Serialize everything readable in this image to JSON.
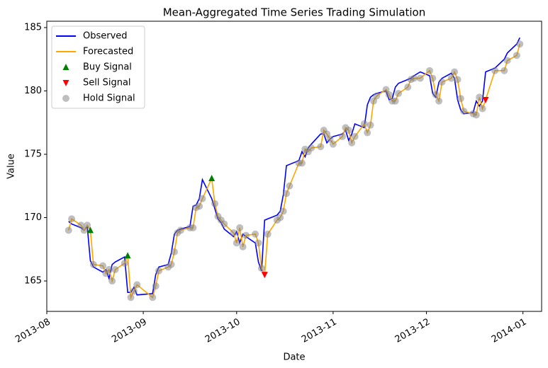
{
  "chart_data": {
    "type": "line",
    "title": "Mean-Aggregated Time Series Trading Simulation",
    "x_label": "Date",
    "y_label": "Value",
    "x": [
      "2013-08-08",
      "2013-08-09",
      "2013-08-12",
      "2013-08-13",
      "2013-08-14",
      "2013-08-15",
      "2013-08-16",
      "2013-08-19",
      "2013-08-20",
      "2013-08-21",
      "2013-08-22",
      "2013-08-23",
      "2013-08-26",
      "2013-08-27",
      "2013-08-28",
      "2013-08-29",
      "2013-08-30",
      "2013-09-04",
      "2013-09-05",
      "2013-09-06",
      "2013-09-09",
      "2013-09-10",
      "2013-09-11",
      "2013-09-12",
      "2013-09-13",
      "2013-09-16",
      "2013-09-17",
      "2013-09-18",
      "2013-09-19",
      "2013-09-20",
      "2013-09-23",
      "2013-09-24",
      "2013-09-25",
      "2013-09-26",
      "2013-09-27",
      "2013-09-30",
      "2013-10-01",
      "2013-10-02",
      "2013-10-03",
      "2013-10-04",
      "2013-10-07",
      "2013-10-08",
      "2013-10-09",
      "2013-10-10",
      "2013-10-11",
      "2013-10-14",
      "2013-10-15",
      "2013-10-16",
      "2013-10-17",
      "2013-10-18",
      "2013-10-21",
      "2013-10-22",
      "2013-10-23",
      "2013-10-24",
      "2013-10-25",
      "2013-10-28",
      "2013-10-29",
      "2013-10-30",
      "2013-10-31",
      "2013-11-01",
      "2013-11-04",
      "2013-11-05",
      "2013-11-06",
      "2013-11-07",
      "2013-11-08",
      "2013-11-11",
      "2013-11-12",
      "2013-11-13",
      "2013-11-14",
      "2013-11-15",
      "2013-11-18",
      "2013-11-19",
      "2013-11-20",
      "2013-11-21",
      "2013-11-22",
      "2013-11-25",
      "2013-11-26",
      "2013-11-27",
      "2013-11-29",
      "2013-12-02",
      "2013-12-03",
      "2013-12-04",
      "2013-12-05",
      "2013-12-06",
      "2013-12-09",
      "2013-12-10",
      "2013-12-11",
      "2013-12-12",
      "2013-12-13",
      "2013-12-16",
      "2013-12-17",
      "2013-12-18",
      "2013-12-19",
      "2013-12-20",
      "2013-12-23",
      "2013-12-26",
      "2013-12-27",
      "2013-12-30",
      "2013-12-31"
    ],
    "series": [
      {
        "name": "Observed",
        "color": "#0000ff",
        "values": [
          169.7,
          169.5,
          169.2,
          169.0,
          169.3,
          166.6,
          166.1,
          165.7,
          165.9,
          165.2,
          166.3,
          166.5,
          166.9,
          164.1,
          164.1,
          164.5,
          163.9,
          164.0,
          165.5,
          166.1,
          166.3,
          167.2,
          168.7,
          169.0,
          169.1,
          169.3,
          170.9,
          171.0,
          171.5,
          173.0,
          171.5,
          170.7,
          169.9,
          169.6,
          169.1,
          168.5,
          168.9,
          168.0,
          168.7,
          168.5,
          168.0,
          166.5,
          165.8,
          169.8,
          169.9,
          170.2,
          170.5,
          171.8,
          174.1,
          174.2,
          174.5,
          175.2,
          174.8,
          175.5,
          175.8,
          176.6,
          176.6,
          175.9,
          176.2,
          176.4,
          176.6,
          176.9,
          176.1,
          176.6,
          177.4,
          177.1,
          178.9,
          179.5,
          179.7,
          179.8,
          180.0,
          179.3,
          179.4,
          180.3,
          180.6,
          180.9,
          181.0,
          181.2,
          181.5,
          181.2,
          179.8,
          179.5,
          180.7,
          181.0,
          181.4,
          181.0,
          179.3,
          178.5,
          178.2,
          178.3,
          179.2,
          178.8,
          179.2,
          181.5,
          181.8,
          182.5,
          183.0,
          183.7,
          184.2
        ]
      },
      {
        "name": "Forecasted",
        "color": "#ffa500",
        "values": [
          169.0,
          169.9,
          169.4,
          169.0,
          169.4,
          169.0,
          166.3,
          166.2,
          165.6,
          165.9,
          165.0,
          165.9,
          166.4,
          167.0,
          163.7,
          164.2,
          164.7,
          163.7,
          164.6,
          165.8,
          166.1,
          166.3,
          167.3,
          168.8,
          169.0,
          169.2,
          169.2,
          170.8,
          170.9,
          171.5,
          173.1,
          171.1,
          170.1,
          169.8,
          169.5,
          168.8,
          168.0,
          169.2,
          167.7,
          168.6,
          168.7,
          168.0,
          166.0,
          165.5,
          168.7,
          169.8,
          170.0,
          170.5,
          171.9,
          172.5,
          174.3,
          174.3,
          175.4,
          175.2,
          175.5,
          175.6,
          176.9,
          176.6,
          176.2,
          175.8,
          176.4,
          177.1,
          176.9,
          175.9,
          176.4,
          177.4,
          176.7,
          177.3,
          179.2,
          179.6,
          180.1,
          179.7,
          179.2,
          179.2,
          179.8,
          180.3,
          180.9,
          181.0,
          181.0,
          181.6,
          181.0,
          179.7,
          179.2,
          180.7,
          181.0,
          181.5,
          180.9,
          179.4,
          178.4,
          178.2,
          178.1,
          179.5,
          178.6,
          179.3,
          181.6,
          181.6,
          182.4,
          182.8,
          183.7
        ]
      }
    ],
    "signals": [
      {
        "name": "Buy Signal",
        "color": "#008000",
        "marker": "triangle-up",
        "x": [
          "2013-08-15",
          "2013-08-27",
          "2013-09-23"
        ],
        "values": [
          169.0,
          167.0,
          173.1
        ]
      },
      {
        "name": "Sell Signal",
        "color": "#ff0000",
        "marker": "triangle-down",
        "x": [
          "2013-10-10",
          "2013-12-20"
        ],
        "values": [
          165.5,
          179.3
        ]
      },
      {
        "name": "Hold Signal",
        "color": "#808080",
        "marker": "circle",
        "values": [
          169.0,
          169.9,
          169.4,
          169.0,
          169.4,
          null,
          166.3,
          166.2,
          165.6,
          165.9,
          165.0,
          165.9,
          166.4,
          null,
          163.7,
          164.2,
          164.7,
          163.7,
          164.6,
          165.8,
          166.1,
          166.3,
          167.3,
          168.8,
          169.0,
          169.2,
          169.2,
          170.8,
          170.9,
          171.5,
          null,
          171.1,
          170.1,
          169.8,
          169.5,
          168.8,
          168.0,
          169.2,
          167.7,
          168.6,
          168.7,
          168.0,
          166.0,
          null,
          168.7,
          169.8,
          170.0,
          170.5,
          171.9,
          172.5,
          174.3,
          174.3,
          175.4,
          175.2,
          175.5,
          175.6,
          176.9,
          176.6,
          176.2,
          175.8,
          176.4,
          177.1,
          176.9,
          175.9,
          176.4,
          177.4,
          176.7,
          177.3,
          179.2,
          179.6,
          180.1,
          179.7,
          179.2,
          179.2,
          179.8,
          180.3,
          180.9,
          181.0,
          181.0,
          181.6,
          181.0,
          179.7,
          179.2,
          180.7,
          181.0,
          181.5,
          180.9,
          179.4,
          178.4,
          178.2,
          178.1,
          179.5,
          178.6,
          null,
          181.6,
          181.6,
          182.4,
          182.8,
          183.7
        ]
      }
    ],
    "xlim": [
      "2013-08-01",
      "2014-01-07"
    ],
    "xticks": [
      {
        "value": "2013-08-01",
        "label": "2013-08"
      },
      {
        "value": "2013-09-01",
        "label": "2013-09"
      },
      {
        "value": "2013-10-01",
        "label": "2013-10"
      },
      {
        "value": "2013-11-01",
        "label": "2013-11"
      },
      {
        "value": "2013-12-01",
        "label": "2013-12"
      },
      {
        "value": "2014-01-01",
        "label": "2014-01"
      }
    ],
    "ylim": [
      162.6,
      185.5
    ],
    "yticks": [
      165,
      170,
      175,
      180,
      185
    ],
    "grid": false,
    "legend": "upper-left"
  }
}
